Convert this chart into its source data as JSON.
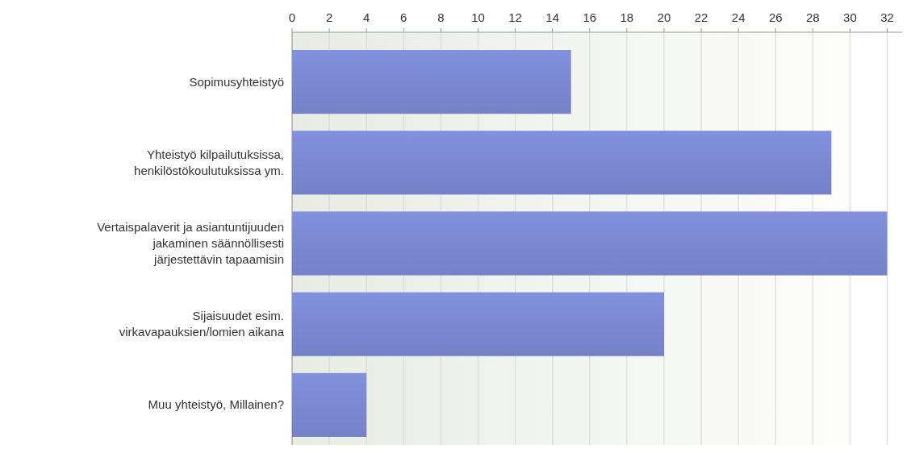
{
  "chart_data": {
    "type": "bar",
    "orientation": "horizontal",
    "categories": [
      "Sopimusyhteistyö",
      "Yhteistyö kilpailutuksissa, henkilöstökoulutuksissa ym.",
      "Vertaispalaverit ja asiantuntijuuden jakaminen säännöllisesti järjestettävin tapaamisin",
      "Sijaisuudet esim. virkavapauksien/lomien aikana",
      "Muu yhteistyö, Millainen?"
    ],
    "values": [
      15,
      29,
      32,
      20,
      4
    ],
    "color": "#7b89d2",
    "xlim": [
      0,
      32.8
    ],
    "xticks": [
      0,
      2,
      4,
      6,
      8,
      10,
      12,
      14,
      16,
      18,
      20,
      22,
      24,
      26,
      28,
      30,
      32
    ],
    "grid": "x"
  }
}
